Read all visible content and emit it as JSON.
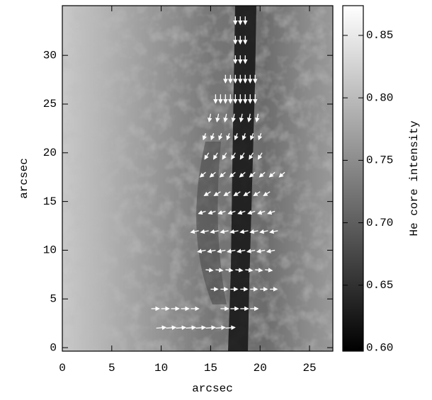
{
  "chart_data": {
    "type": "vector-image",
    "xlabel": "arcsec",
    "ylabel": "arcsec",
    "colorbar_label": "He core intensity",
    "colormap": "gray",
    "arrow_color": "#ffffff",
    "xlim": [
      0,
      27.36
    ],
    "xticks": [
      0,
      5,
      10,
      15,
      20,
      25
    ],
    "ylim": [
      -0.36,
      35.1
    ],
    "yticks": [
      0,
      5,
      10,
      15,
      20,
      25,
      30
    ],
    "clim": [
      0.5972,
      0.8738
    ],
    "cticks": [
      {
        "value": 0.6,
        "label": "0.60"
      },
      0.65,
      {
        "value": 0.7,
        "label": "0.70"
      },
      0.75,
      {
        "value": 0.8,
        "label": "0.80"
      },
      0.85
    ],
    "vectors": [
      [
        17.5,
        34,
        0,
        -1
      ],
      [
        18,
        34,
        0,
        -1
      ],
      [
        18.5,
        34,
        0,
        -1
      ],
      [
        17.5,
        32,
        0,
        -1
      ],
      [
        18,
        32,
        0,
        -1
      ],
      [
        18.5,
        32,
        0,
        -1
      ],
      [
        17.5,
        30,
        0,
        -1
      ],
      [
        18,
        30,
        0,
        -1
      ],
      [
        18.5,
        30,
        0,
        -1
      ],
      [
        16.5,
        28,
        0,
        -1
      ],
      [
        17,
        28,
        0,
        -1
      ],
      [
        17.5,
        28,
        0,
        -1
      ],
      [
        18,
        28,
        0,
        -1
      ],
      [
        18.5,
        28,
        0,
        -1
      ],
      [
        19,
        28,
        0,
        -1
      ],
      [
        19.5,
        28,
        0,
        -1
      ],
      [
        15.5,
        26,
        0,
        -1.1
      ],
      [
        16,
        26,
        0,
        -1.1
      ],
      [
        16.5,
        26,
        0,
        -1.1
      ],
      [
        17,
        26,
        0,
        -1.1
      ],
      [
        17.5,
        26,
        0,
        -1.1
      ],
      [
        18,
        26,
        0,
        -1.1
      ],
      [
        18.5,
        26,
        0,
        -1.1
      ],
      [
        19,
        26,
        0,
        -1.1
      ],
      [
        19.5,
        26,
        0,
        -1.1
      ],
      [
        15,
        24,
        -0.2,
        -1
      ],
      [
        15.8,
        24,
        -0.2,
        -1
      ],
      [
        16.6,
        24,
        -0.2,
        -1
      ],
      [
        17.4,
        24,
        -0.2,
        -1
      ],
      [
        18.2,
        24,
        -0.2,
        -1
      ],
      [
        19,
        24,
        -0.2,
        -1
      ],
      [
        19.8,
        24,
        -0.2,
        -1
      ],
      [
        14.5,
        22,
        -0.3,
        -0.8
      ],
      [
        15.3,
        22,
        -0.3,
        -0.8
      ],
      [
        16.1,
        22,
        -0.3,
        -0.8
      ],
      [
        16.9,
        22,
        -0.3,
        -0.8
      ],
      [
        17.7,
        22,
        -0.3,
        -0.8
      ],
      [
        18.5,
        22,
        -0.3,
        -0.8
      ],
      [
        19.3,
        22,
        -0.3,
        -0.8
      ],
      [
        20.1,
        22,
        -0.3,
        -0.8
      ],
      [
        14.8,
        20,
        -0.5,
        -0.8
      ],
      [
        15.7,
        20,
        -0.5,
        -0.8
      ],
      [
        16.6,
        20,
        -0.5,
        -0.8
      ],
      [
        17.5,
        20,
        -0.5,
        -0.8
      ],
      [
        18.4,
        20,
        -0.5,
        -0.8
      ],
      [
        19.3,
        20,
        -0.5,
        -0.8
      ],
      [
        20.2,
        20,
        -0.5,
        -0.8
      ],
      [
        14.5,
        18,
        -0.7,
        -0.6
      ],
      [
        15.5,
        18,
        -0.7,
        -0.6
      ],
      [
        16.5,
        18,
        -0.7,
        -0.6
      ],
      [
        17.5,
        18,
        -0.7,
        -0.6
      ],
      [
        18.5,
        18,
        -0.7,
        -0.6
      ],
      [
        19.5,
        18,
        -0.7,
        -0.6
      ],
      [
        20.5,
        18,
        -0.7,
        -0.6
      ],
      [
        21.5,
        18,
        -0.7,
        -0.6
      ],
      [
        22.5,
        18,
        -0.7,
        -0.6
      ],
      [
        15,
        16,
        -0.8,
        -0.5
      ],
      [
        16,
        16,
        -0.8,
        -0.5
      ],
      [
        17,
        16,
        -0.8,
        -0.5
      ],
      [
        18,
        16,
        -0.8,
        -0.5
      ],
      [
        19,
        16,
        -0.8,
        -0.5
      ],
      [
        20,
        16,
        -0.8,
        -0.5
      ],
      [
        21,
        16,
        -0.8,
        -0.5
      ],
      [
        14.5,
        14,
        -0.9,
        -0.3
      ],
      [
        15.5,
        14,
        -0.9,
        -0.3
      ],
      [
        16.5,
        14,
        -0.9,
        -0.3
      ],
      [
        17.5,
        14,
        -0.9,
        -0.3
      ],
      [
        18.5,
        14,
        -0.9,
        -0.3
      ],
      [
        19.5,
        14,
        -0.9,
        -0.3
      ],
      [
        20.5,
        14,
        -0.9,
        -0.3
      ],
      [
        21.5,
        14,
        -0.9,
        -0.3
      ],
      [
        13.8,
        12,
        -1,
        -0.2
      ],
      [
        14.8,
        12,
        -1,
        -0.2
      ],
      [
        15.8,
        12,
        -1,
        -0.2
      ],
      [
        16.8,
        12,
        -1,
        -0.2
      ],
      [
        17.8,
        12,
        -1,
        -0.2
      ],
      [
        18.8,
        12,
        -1,
        -0.2
      ],
      [
        19.8,
        12,
        -1,
        -0.2
      ],
      [
        20.8,
        12,
        -1,
        -0.2
      ],
      [
        21.8,
        12,
        -1,
        -0.2
      ],
      [
        14.5,
        10,
        -1,
        -0.2
      ],
      [
        15.5,
        10,
        -1,
        -0.2
      ],
      [
        16.5,
        10,
        -1,
        -0.2
      ],
      [
        17.5,
        10,
        -1,
        -0.2
      ],
      [
        18.5,
        10,
        -1,
        -0.2
      ],
      [
        19.5,
        10,
        -1,
        -0.2
      ],
      [
        20.5,
        10,
        -1,
        -0.2
      ],
      [
        21.5,
        10,
        -1,
        -0.2
      ],
      [
        14.5,
        8,
        0.9,
        -0.1
      ],
      [
        15.5,
        8,
        0.9,
        -0.1
      ],
      [
        16.5,
        8,
        0.9,
        -0.1
      ],
      [
        17.5,
        8,
        0.9,
        -0.1
      ],
      [
        18.5,
        8,
        0.9,
        -0.1
      ],
      [
        19.5,
        8,
        0.9,
        -0.1
      ],
      [
        20.5,
        8,
        0.9,
        -0.1
      ],
      [
        15,
        6,
        0.9,
        0
      ],
      [
        16,
        6,
        0.9,
        0
      ],
      [
        17,
        6,
        0.9,
        0
      ],
      [
        18,
        6,
        0.9,
        0
      ],
      [
        19,
        6,
        0.9,
        0
      ],
      [
        20,
        6,
        0.9,
        0
      ],
      [
        21,
        6,
        0.9,
        0
      ],
      [
        9,
        4,
        1,
        0
      ],
      [
        10,
        4,
        1,
        0
      ],
      [
        11,
        4,
        1,
        0
      ],
      [
        12,
        4,
        1,
        0
      ],
      [
        13,
        4,
        1,
        0
      ],
      [
        16,
        4,
        1,
        0
      ],
      [
        17,
        4,
        1,
        0
      ],
      [
        18,
        4,
        1,
        0
      ],
      [
        19,
        4,
        1,
        0
      ],
      [
        9.5,
        2,
        1.2,
        0.1
      ],
      [
        10.5,
        2,
        1.2,
        0.1
      ],
      [
        11.5,
        2,
        1.2,
        0.1
      ],
      [
        12.5,
        2,
        1.2,
        0.1
      ],
      [
        13.5,
        2,
        1.2,
        0.1
      ],
      [
        14.5,
        2,
        1.2,
        0.1
      ],
      [
        15.5,
        2,
        1.2,
        0.1
      ],
      [
        16.5,
        2,
        1.2,
        0.1
      ]
    ]
  }
}
